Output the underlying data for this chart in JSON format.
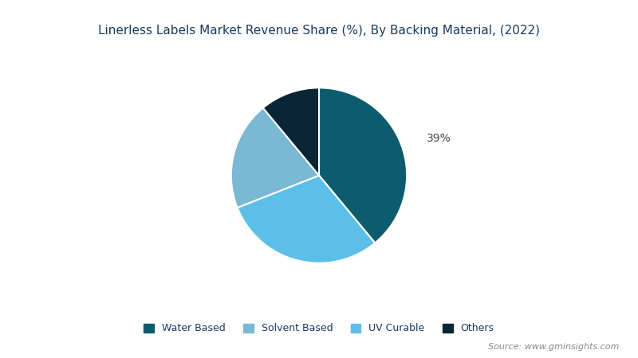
{
  "title": "Linerless Labels Market Revenue Share (%), By Backing Material, (2022)",
  "segments": [
    {
      "label": "Water Based",
      "value": 39,
      "color": "#0d5c6e",
      "show_label": true
    },
    {
      "label": "UV Curable",
      "value": 30,
      "color": "#5bbfe8",
      "show_label": false
    },
    {
      "label": "Solvent Based",
      "value": 20,
      "color": "#7ab8d4",
      "show_label": false
    },
    {
      "label": "Others",
      "value": 11,
      "color": "#0a2535",
      "show_label": false
    }
  ],
  "legend_order": [
    "Water Based",
    "Solvent Based",
    "UV Curable",
    "Others"
  ],
  "legend_colors": {
    "Water Based": "#0d5c6e",
    "Solvent Based": "#7ab8d4",
    "UV Curable": "#5bbfe8",
    "Others": "#0a2535"
  },
  "background_color": "#ffffff",
  "title_color": "#1a3a5c",
  "title_fontsize": 11,
  "source_text": "Source: www.gminsights.com",
  "source_color": "#888888",
  "start_angle": 90,
  "label_text": "39%",
  "label_color": "#444444",
  "label_fontsize": 10
}
